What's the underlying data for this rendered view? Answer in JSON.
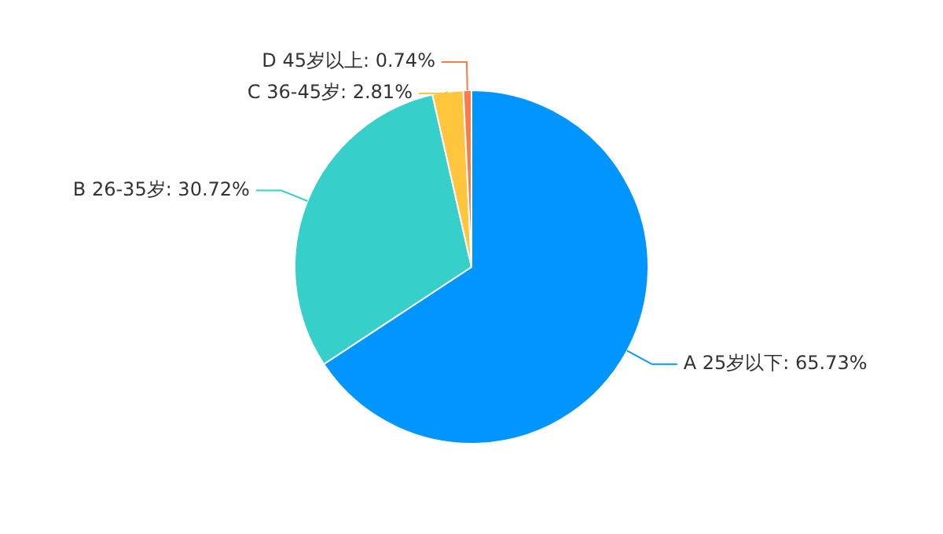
{
  "chart_data": {
    "type": "pie",
    "categories": [
      "A 25岁以下",
      "B 26-35岁",
      "C 36-45岁",
      "D 45岁以上"
    ],
    "values": [
      65.73,
      30.72,
      2.81,
      0.74
    ],
    "value_labels": [
      ": 65.73%",
      ": 30.72%",
      ": 2.81%",
      ": 0.74%"
    ],
    "colors": [
      "#0095ff",
      "#36cfc9",
      "#ffc53d",
      "#ff7a45"
    ],
    "legend": false
  }
}
